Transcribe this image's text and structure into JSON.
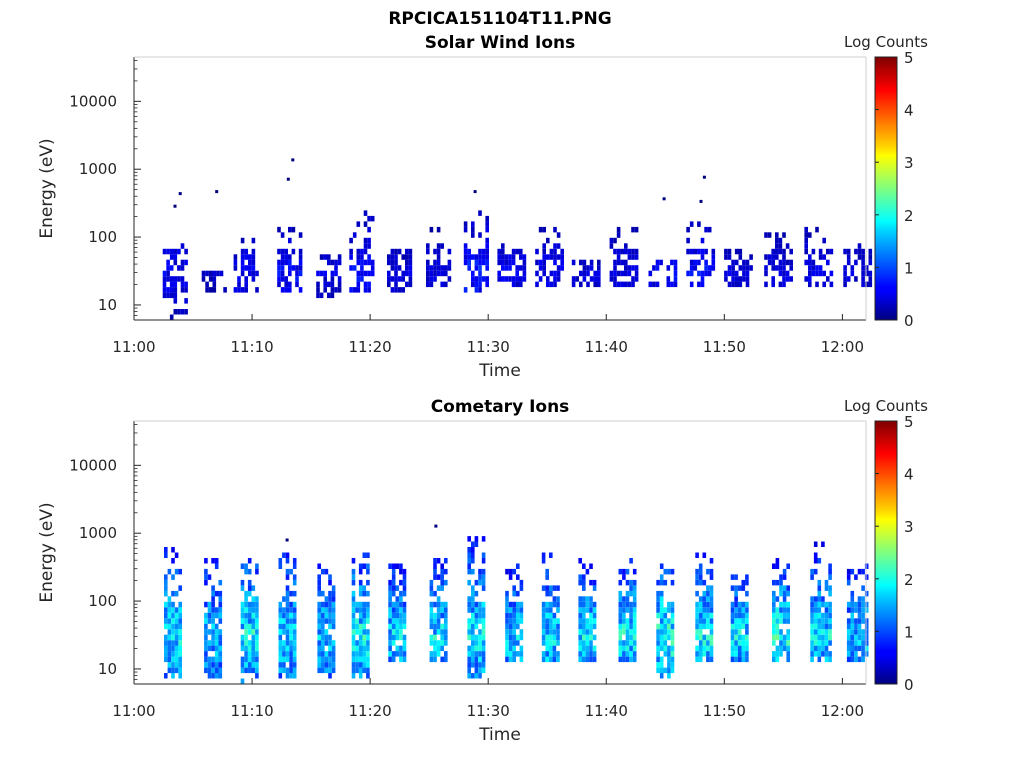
{
  "figure": {
    "title": "RPCICA151104T11.PNG"
  },
  "chart_data": [
    {
      "type": "heatmap",
      "title": "Solar Wind Ions",
      "xlabel": "Time",
      "ylabel": "Energy (eV)",
      "x_ticks": [
        "11:00",
        "11:10",
        "11:20",
        "11:30",
        "11:40",
        "11:50",
        "12:00"
      ],
      "y_ticks": [
        "10",
        "100",
        "1000",
        "10000"
      ],
      "y_scale": "log",
      "xlim": [
        "11:00",
        "12:02"
      ],
      "ylim": [
        6,
        45000
      ],
      "colorbar": {
        "label": "Log Counts",
        "ticks": [
          "0",
          "1",
          "2",
          "3",
          "4",
          "5"
        ],
        "range": [
          0,
          5
        ],
        "colormap": "jet"
      },
      "bursts": [
        {
          "time": "11:03.5",
          "emin": 6,
          "emax": 75,
          "peak": 0.6,
          "dots": [
            280,
            430
          ]
        },
        {
          "time": "11:06.8",
          "emin": 14,
          "emax": 30,
          "peak": 0.4,
          "dots": [
            460
          ]
        },
        {
          "time": "11:09.5",
          "emin": 14,
          "emax": 110,
          "peak": 0.6,
          "dots": []
        },
        {
          "time": "11:13.2",
          "emin": 14,
          "emax": 145,
          "peak": 0.7,
          "dots": [
            1350,
            700
          ]
        },
        {
          "time": "11:16.5",
          "emin": 13,
          "emax": 60,
          "peak": 0.5,
          "dots": []
        },
        {
          "time": "11:19.3",
          "emin": 14,
          "emax": 230,
          "peak": 0.7,
          "dots": []
        },
        {
          "time": "11:22.5",
          "emin": 14,
          "emax": 80,
          "peak": 0.5,
          "dots": []
        },
        {
          "time": "11:25.8",
          "emin": 18,
          "emax": 140,
          "peak": 0.5,
          "dots": []
        },
        {
          "time": "11:29.0",
          "emin": 14,
          "emax": 230,
          "peak": 0.8,
          "dots": [
            460
          ]
        },
        {
          "time": "11:32.0",
          "emin": 18,
          "emax": 80,
          "peak": 0.6,
          "dots": []
        },
        {
          "time": "11:35.2",
          "emin": 18,
          "emax": 130,
          "peak": 0.6,
          "dots": []
        },
        {
          "time": "11:38.3",
          "emin": 18,
          "emax": 50,
          "peak": 0.5,
          "dots": []
        },
        {
          "time": "11:41.5",
          "emin": 18,
          "emax": 165,
          "peak": 0.5,
          "dots": []
        },
        {
          "time": "11:44.8",
          "emin": 18,
          "emax": 50,
          "peak": 0.7,
          "dots": [
            360
          ]
        },
        {
          "time": "11:48.0",
          "emin": 18,
          "emax": 180,
          "peak": 0.7,
          "dots": [
            750,
            330
          ]
        },
        {
          "time": "11:51.2",
          "emin": 18,
          "emax": 70,
          "peak": 0.5,
          "dots": []
        },
        {
          "time": "11:54.6",
          "emin": 18,
          "emax": 110,
          "peak": 0.5,
          "dots": []
        },
        {
          "time": "11:58.0",
          "emin": 18,
          "emax": 150,
          "peak": 0.6,
          "dots": []
        },
        {
          "time": "12:01.3",
          "emin": 18,
          "emax": 80,
          "peak": 0.5,
          "dots": []
        }
      ]
    },
    {
      "type": "heatmap",
      "title": "Cometary Ions",
      "xlabel": "Time",
      "ylabel": "Energy (eV)",
      "x_ticks": [
        "11:00",
        "11:10",
        "11:20",
        "11:30",
        "11:40",
        "11:50",
        "12:00"
      ],
      "y_ticks": [
        "10",
        "100",
        "1000",
        "10000"
      ],
      "y_scale": "log",
      "xlim": [
        "11:00",
        "12:02"
      ],
      "ylim": [
        6,
        45000
      ],
      "colorbar": {
        "label": "Log Counts",
        "ticks": [
          "0",
          "1",
          "2",
          "3",
          "4",
          "5"
        ],
        "range": [
          0,
          5
        ],
        "colormap": "jet"
      },
      "bursts": [
        {
          "time": "11:03.3",
          "emin": 7,
          "emax": 600,
          "peak": 1.9,
          "dots": []
        },
        {
          "time": "11:06.7",
          "emin": 7,
          "emax": 400,
          "peak": 1.7,
          "dots": []
        },
        {
          "time": "11:09.8",
          "emin": 6,
          "emax": 430,
          "peak": 2.0,
          "dots": []
        },
        {
          "time": "11:13.0",
          "emin": 7,
          "emax": 500,
          "peak": 1.8,
          "dots": [
            780
          ]
        },
        {
          "time": "11:16.3",
          "emin": 7,
          "emax": 380,
          "peak": 1.7,
          "dots": []
        },
        {
          "time": "11:19.2",
          "emin": 7,
          "emax": 520,
          "peak": 2.0,
          "dots": []
        },
        {
          "time": "11:22.3",
          "emin": 12,
          "emax": 430,
          "peak": 1.8,
          "dots": []
        },
        {
          "time": "11:25.8",
          "emin": 12,
          "emax": 400,
          "peak": 1.9,
          "dots": [
            1250
          ]
        },
        {
          "time": "11:29.0",
          "emin": 7,
          "emax": 900,
          "peak": 1.9,
          "dots": []
        },
        {
          "time": "11:32.2",
          "emin": 12,
          "emax": 350,
          "peak": 1.8,
          "dots": []
        },
        {
          "time": "11:35.3",
          "emin": 12,
          "emax": 480,
          "peak": 1.9,
          "dots": []
        },
        {
          "time": "11:38.4",
          "emin": 12,
          "emax": 440,
          "peak": 1.9,
          "dots": []
        },
        {
          "time": "11:41.8",
          "emin": 12,
          "emax": 420,
          "peak": 2.0,
          "dots": []
        },
        {
          "time": "11:45.0",
          "emin": 7,
          "emax": 380,
          "peak": 2.1,
          "dots": []
        },
        {
          "time": "11:48.3",
          "emin": 12,
          "emax": 480,
          "peak": 2.0,
          "dots": []
        },
        {
          "time": "11:51.3",
          "emin": 12,
          "emax": 250,
          "peak": 1.9,
          "dots": []
        },
        {
          "time": "11:54.8",
          "emin": 12,
          "emax": 430,
          "peak": 2.1,
          "dots": []
        },
        {
          "time": "11:58.2",
          "emin": 12,
          "emax": 700,
          "peak": 1.9,
          "dots": []
        },
        {
          "time": "12:01.3",
          "emin": 12,
          "emax": 330,
          "peak": 1.7,
          "dots": []
        }
      ]
    }
  ]
}
